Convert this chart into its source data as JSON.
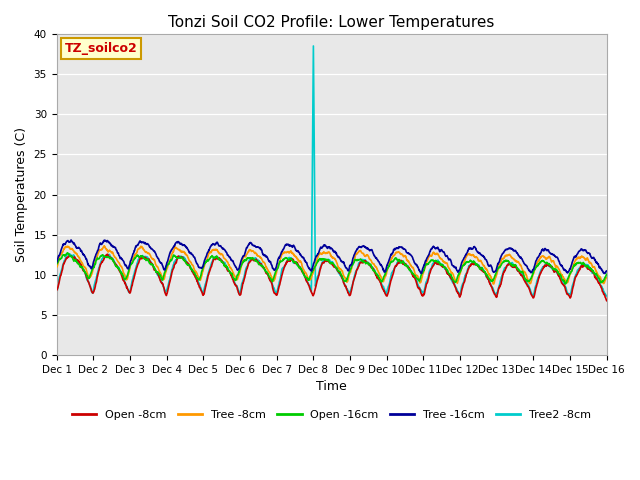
{
  "title": "Tonzi Soil CO2 Profile: Lower Temperatures",
  "xlabel": "Time",
  "ylabel": "Soil Temperatures (C)",
  "ylim": [
    0,
    40
  ],
  "yticks": [
    0,
    5,
    10,
    15,
    20,
    25,
    30,
    35,
    40
  ],
  "bg_color": "#e8e8e8",
  "series": {
    "Open -8cm": {
      "color": "#cc0000",
      "lw": 1.2
    },
    "Tree -8cm": {
      "color": "#ff9900",
      "lw": 1.2
    },
    "Open -16cm": {
      "color": "#00cc00",
      "lw": 1.2
    },
    "Tree -16cm": {
      "color": "#000099",
      "lw": 1.2
    },
    "Tree2 -8cm": {
      "color": "#00cccc",
      "lw": 1.2
    }
  },
  "annotation_box": {
    "text": "TZ_soilco2",
    "text_color": "#cc0000",
    "bg_color": "#ffffcc",
    "border_color": "#cc9900"
  },
  "n_days": 15,
  "spike_day": 7,
  "spike_value": 38.5
}
